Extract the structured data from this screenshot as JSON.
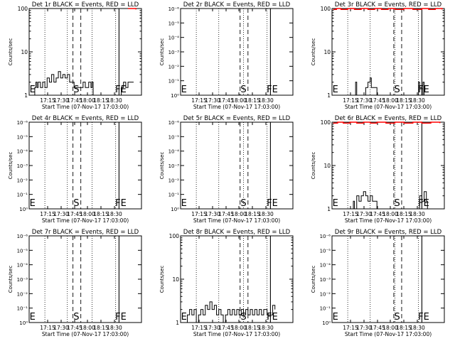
{
  "chart_data": [
    {
      "type": "line",
      "title": "Det 1r BLACK = Events, RED = LLD",
      "xlabel": "Start Time (07-Nov-17 17:03:00)",
      "ylabel": "Counts/sec",
      "x_tick_labels": [
        "17:15",
        "17:30",
        "17:45",
        "18:00",
        "18:15",
        "18:30"
      ],
      "y_scale": "log",
      "y_tick_labels": [
        "1",
        "10",
        "100"
      ],
      "y_ticks": [
        1,
        10,
        100
      ],
      "ylim": [
        1,
        100
      ],
      "xlim": [
        0,
        100
      ],
      "markers": {
        "E": 3,
        "S": 42,
        "F": 79,
        "E2": 84
      },
      "dotted_lines": [
        14,
        34,
        56,
        77
      ],
      "dashed_lines": [
        39,
        46
      ],
      "solid_lines": [
        80
      ],
      "series": [
        {
          "name": "Events",
          "color": "#000000",
          "points": [
            [
              4,
              1
            ],
            [
              5,
              1.5
            ],
            [
              6,
              2
            ],
            [
              7,
              1.5
            ],
            [
              8,
              2
            ],
            [
              10,
              1.5
            ],
            [
              12,
              2
            ],
            [
              14,
              1.5
            ],
            [
              16,
              2.5
            ],
            [
              18,
              2
            ],
            [
              20,
              3
            ],
            [
              22,
              2
            ],
            [
              24,
              2.5
            ],
            [
              26,
              3.5
            ],
            [
              28,
              2.5
            ],
            [
              30,
              3
            ],
            [
              32,
              2.5
            ],
            [
              34,
              3
            ],
            [
              36,
              2
            ],
            [
              40,
              1.5
            ],
            [
              46,
              1.5
            ],
            [
              48,
              2
            ],
            [
              50,
              1.5
            ],
            [
              53,
              2
            ],
            [
              55,
              1.5
            ],
            [
              56,
              2
            ],
            [
              57,
              1
            ],
            [
              60,
              1
            ],
            [
              82,
              1.5
            ],
            [
              84,
              2
            ],
            [
              86,
              1.5
            ],
            [
              88,
              2
            ],
            [
              90,
              2
            ],
            [
              93,
              2
            ]
          ]
        },
        {
          "name": "LLD",
          "color": "#ff0000",
          "points": [
            [
              88,
              100
            ],
            [
              92,
              100
            ],
            [
              95,
              95
            ]
          ]
        }
      ]
    },
    {
      "type": "line",
      "title": "Det 2r BLACK = Events, RED = LLD",
      "xlabel": "Start Time (07-Nov-17 17:03:00)",
      "ylabel": "Counts/sec",
      "x_tick_labels": [
        "17:15",
        "17:30",
        "17:45",
        "18:00",
        "18:15",
        "18:30"
      ],
      "y_scale": "log",
      "y_tick_labels": [
        "10⁰",
        "10⁻¹",
        "10⁻²",
        "10⁻³",
        "10⁻⁴",
        "10⁻⁵",
        "10⁻⁶"
      ],
      "y_ticks": [
        1,
        2,
        3,
        4,
        5,
        6,
        7
      ],
      "ylim": [
        1,
        7
      ],
      "xlim": [
        0,
        100
      ],
      "markers": {
        "E": 3,
        "S": 56,
        "F": 79,
        "E2": 84
      },
      "dotted_lines": [
        14,
        34,
        56,
        77
      ],
      "dashed_lines": [
        53,
        60
      ],
      "solid_lines": [
        80
      ],
      "series": []
    },
    {
      "type": "line",
      "title": "Det 3r BLACK = Events, RED = LLD",
      "xlabel": "Start Time (07-Nov-17 17:03:00)",
      "ylabel": "Counts/sec",
      "x_tick_labels": [
        "17:15",
        "17:30",
        "17:45",
        "18:00",
        "18:15",
        "18:30"
      ],
      "y_scale": "log",
      "y_tick_labels": [
        "1",
        "10",
        "100"
      ],
      "y_ticks": [
        1,
        10,
        100
      ],
      "ylim": [
        1,
        100
      ],
      "xlim": [
        0,
        100
      ],
      "markers": {
        "E": 3,
        "S": 58,
        "F": 79,
        "E2": 84
      },
      "dotted_lines": [
        14,
        34,
        56,
        77
      ],
      "dashed_lines": [
        55,
        62
      ],
      "solid_lines": [
        80
      ],
      "series": [
        {
          "name": "Events",
          "color": "#000000",
          "points": [
            [
              20,
              1
            ],
            [
              21,
              2
            ],
            [
              22,
              1
            ],
            [
              28,
              1
            ],
            [
              30,
              1.5
            ],
            [
              32,
              2
            ],
            [
              34,
              2.5
            ],
            [
              35,
              1.5
            ],
            [
              37,
              1.5
            ],
            [
              40,
              1
            ],
            [
              76,
              1
            ],
            [
              77,
              2
            ],
            [
              78,
              1.5
            ],
            [
              80,
              1
            ],
            [
              81,
              2
            ],
            [
              82,
              1
            ]
          ]
        },
        {
          "name": "LLD",
          "color": "#ff0000",
          "points": [
            [
              1,
              95
            ],
            [
              4,
              100
            ],
            [
              8,
              95
            ],
            [
              14,
              100
            ],
            [
              20,
              95
            ],
            [
              26,
              100
            ],
            [
              32,
              95
            ],
            [
              38,
              100
            ],
            [
              44,
              95
            ],
            [
              50,
              100
            ],
            [
              56,
              95
            ],
            [
              64,
              100
            ],
            [
              72,
              95
            ],
            [
              80,
              100
            ],
            [
              86,
              95
            ],
            [
              92,
              100
            ],
            [
              98,
              95
            ]
          ]
        }
      ]
    },
    {
      "type": "line",
      "title": "Det 4r BLACK = Events, RED = LLD",
      "xlabel": "Start Time (07-Nov-17 17:03:00)",
      "ylabel": "Counts/sec",
      "x_tick_labels": [
        "17:15",
        "17:30",
        "17:45",
        "18:00",
        "18:15",
        "18:30"
      ],
      "y_scale": "log",
      "y_tick_labels": [
        "10⁰",
        "10⁻¹",
        "10⁻²",
        "10⁻³",
        "10⁻⁴",
        "10⁻⁵",
        "10⁻⁶"
      ],
      "y_ticks": [
        1,
        2,
        3,
        4,
        5,
        6,
        7
      ],
      "ylim": [
        1,
        7
      ],
      "xlim": [
        0,
        100
      ],
      "markers": {
        "E": 3,
        "S": 42,
        "F": 79,
        "E2": 84
      },
      "dotted_lines": [
        14,
        34,
        56,
        77
      ],
      "dashed_lines": [
        39,
        46
      ],
      "solid_lines": [
        80
      ],
      "series": []
    },
    {
      "type": "line",
      "title": "Det 5r BLACK = Events, RED = LLD",
      "xlabel": "Start Time (07-Nov-17 17:03:00)",
      "ylabel": "Counts/sec",
      "x_tick_labels": [
        "17:15",
        "17:30",
        "17:45",
        "18:00",
        "18:15",
        "18:30"
      ],
      "y_scale": "log",
      "y_tick_labels": [
        "10⁰",
        "10⁻¹",
        "10⁻²",
        "10⁻³",
        "10⁻⁴",
        "10⁻⁵",
        "10⁻⁶"
      ],
      "y_ticks": [
        1,
        2,
        3,
        4,
        5,
        6,
        7
      ],
      "ylim": [
        1,
        7
      ],
      "xlim": [
        0,
        100
      ],
      "markers": {
        "E": 3,
        "S": 56,
        "F": 79,
        "E2": 84
      },
      "dotted_lines": [
        14,
        34,
        56,
        77
      ],
      "dashed_lines": [
        53,
        60
      ],
      "solid_lines": [
        80
      ],
      "series": []
    },
    {
      "type": "line",
      "title": "Det 6r BLACK = Events, RED = LLD",
      "xlabel": "Start Time (07-Nov-17 17:03:00)",
      "ylabel": "Counts/sec",
      "x_tick_labels": [
        "17:15",
        "17:30",
        "17:45",
        "18:00",
        "18:15",
        "18:30"
      ],
      "y_scale": "log",
      "y_tick_labels": [
        "1",
        "10",
        "100"
      ],
      "y_ticks": [
        1,
        10,
        100
      ],
      "ylim": [
        1,
        100
      ],
      "xlim": [
        0,
        100
      ],
      "markers": {
        "E": 3,
        "S": 58,
        "F": 79,
        "E2": 84
      },
      "dotted_lines": [
        14,
        34,
        56,
        77
      ],
      "dashed_lines": [
        55,
        62
      ],
      "solid_lines": [
        80
      ],
      "series": [
        {
          "name": "Events",
          "color": "#000000",
          "points": [
            [
              18,
              1
            ],
            [
              19,
              1.5
            ],
            [
              20,
              1
            ],
            [
              22,
              2
            ],
            [
              24,
              1.5
            ],
            [
              26,
              2
            ],
            [
              28,
              2.5
            ],
            [
              30,
              2
            ],
            [
              32,
              1.5
            ],
            [
              34,
              2
            ],
            [
              36,
              1.5
            ],
            [
              38,
              1.5
            ],
            [
              40,
              1
            ],
            [
              76,
              1
            ],
            [
              78,
              2
            ],
            [
              80,
              1.5
            ],
            [
              82,
              2.5
            ],
            [
              84,
              1.5
            ],
            [
              85,
              1
            ]
          ]
        },
        {
          "name": "LLD",
          "color": "#ff0000",
          "points": [
            [
              1,
              95
            ],
            [
              5,
              100
            ],
            [
              10,
              95
            ],
            [
              16,
              100
            ],
            [
              22,
              95
            ],
            [
              28,
              100
            ],
            [
              34,
              95
            ],
            [
              40,
              100
            ],
            [
              48,
              95
            ],
            [
              56,
              100
            ],
            [
              64,
              95
            ],
            [
              72,
              100
            ],
            [
              80,
              95
            ],
            [
              88,
              100
            ],
            [
              96,
              95
            ]
          ]
        }
      ]
    },
    {
      "type": "line",
      "title": "Det 7r BLACK = Events, RED = LLD",
      "xlabel": "Start Time (07-Nov-17 17:03:00)",
      "ylabel": "Counts/sec",
      "x_tick_labels": [
        "17:15",
        "17:30",
        "17:45",
        "18:00",
        "18:15",
        "18:30"
      ],
      "y_scale": "log",
      "y_tick_labels": [
        "10⁰",
        "10⁻¹",
        "10⁻²",
        "10⁻³",
        "10⁻⁴",
        "10⁻⁵",
        "10⁻⁶"
      ],
      "y_ticks": [
        1,
        2,
        3,
        4,
        5,
        6,
        7
      ],
      "ylim": [
        1,
        7
      ],
      "xlim": [
        0,
        100
      ],
      "markers": {
        "E": 3,
        "S": 42,
        "F": 79,
        "E2": 84
      },
      "dotted_lines": [
        14,
        34,
        56,
        77
      ],
      "dashed_lines": [
        39,
        46
      ],
      "solid_lines": [
        80
      ],
      "series": []
    },
    {
      "type": "line",
      "title": "Det 8r BLACK = Events, RED = LLD",
      "xlabel": "Start Time (07-Nov-17 17:03:00)",
      "ylabel": "Counts/sec",
      "x_tick_labels": [
        "17:15",
        "17:30",
        "17:45",
        "18:00",
        "18:15",
        "18:30"
      ],
      "y_scale": "log",
      "y_tick_labels": [
        "1",
        "10",
        "100"
      ],
      "y_ticks": [
        1,
        10,
        100
      ],
      "ylim": [
        1,
        100
      ],
      "xlim": [
        0,
        100
      ],
      "markers": {
        "E": 3,
        "S": 56,
        "F": 79,
        "E2": 84
      },
      "dotted_lines": [
        14,
        34,
        56,
        77
      ],
      "dashed_lines": [
        53,
        60
      ],
      "solid_lines": [
        80
      ],
      "series": [
        {
          "name": "Events",
          "color": "#000000",
          "points": [
            [
              4,
              1
            ],
            [
              6,
              1.5
            ],
            [
              8,
              2
            ],
            [
              10,
              1.5
            ],
            [
              12,
              2
            ],
            [
              14,
              1
            ],
            [
              16,
              1.5
            ],
            [
              18,
              2
            ],
            [
              20,
              1.5
            ],
            [
              22,
              2.5
            ],
            [
              24,
              2
            ],
            [
              26,
              3
            ],
            [
              28,
              2
            ],
            [
              30,
              2.5
            ],
            [
              32,
              1.5
            ],
            [
              34,
              2
            ],
            [
              36,
              1.5
            ],
            [
              38,
              1
            ],
            [
              40,
              1.5
            ],
            [
              42,
              2
            ],
            [
              44,
              1.5
            ],
            [
              46,
              2
            ],
            [
              48,
              1.5
            ],
            [
              50,
              2
            ],
            [
              52,
              1.5
            ],
            [
              54,
              2
            ],
            [
              56,
              1.5
            ],
            [
              58,
              2
            ],
            [
              60,
              1.5
            ],
            [
              62,
              2
            ],
            [
              64,
              1.5
            ],
            [
              66,
              2
            ],
            [
              68,
              1.5
            ],
            [
              70,
              2
            ],
            [
              72,
              1.5
            ],
            [
              74,
              2
            ],
            [
              77,
              1.5
            ],
            [
              82,
              2.5
            ],
            [
              84,
              2
            ]
          ]
        }
      ]
    },
    {
      "type": "line",
      "title": "Det 9r BLACK = Events, RED = LLD",
      "xlabel": "Start Time (07-Nov-17 17:03:00)",
      "ylabel": "Counts/sec",
      "x_tick_labels": [
        "17:15",
        "17:30",
        "17:45",
        "18:00",
        "18:15",
        "18:30"
      ],
      "y_scale": "log",
      "y_tick_labels": [
        "10⁰",
        "10⁻¹",
        "10⁻²",
        "10⁻³",
        "10⁻⁴",
        "10⁻⁵",
        "10⁻⁶"
      ],
      "y_ticks": [
        1,
        2,
        3,
        4,
        5,
        6,
        7
      ],
      "ylim": [
        1,
        7
      ],
      "xlim": [
        0,
        100
      ],
      "markers": {
        "E": 3,
        "S": 58,
        "F": 79,
        "E2": 84
      },
      "dotted_lines": [
        14,
        34,
        56,
        77
      ],
      "dashed_lines": [
        55,
        62
      ],
      "solid_lines": [
        80
      ],
      "series": []
    }
  ]
}
